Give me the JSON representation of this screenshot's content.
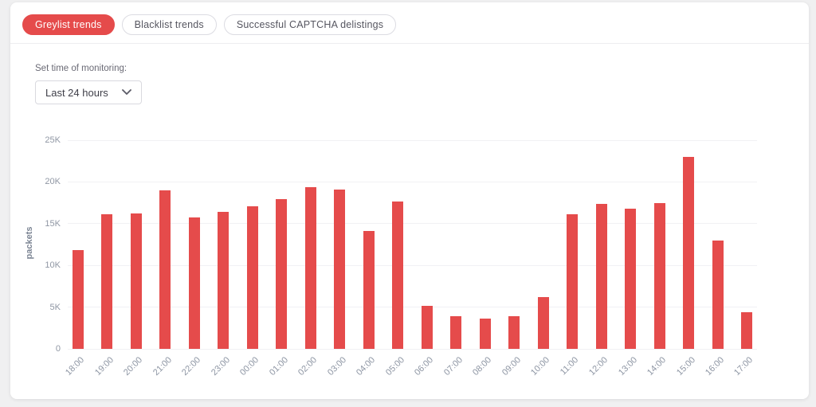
{
  "tabs": [
    {
      "label": "Greylist trends",
      "active": true
    },
    {
      "label": "Blacklist trends",
      "active": false
    },
    {
      "label": "Successful CAPTCHA delistings",
      "active": false
    }
  ],
  "controls": {
    "time_label": "Set time of monitoring:",
    "time_select_value": "Last 24 hours"
  },
  "colors": {
    "accent_red": "#e54b4b",
    "bar": "#e54b4b",
    "grid": "#f1f1f4",
    "axis_text": "#8d95a3",
    "page_bg": "#f0f0f1",
    "card_bg": "#ffffff"
  },
  "chart_data": {
    "type": "bar",
    "title": "",
    "xlabel": "",
    "ylabel": "packets",
    "categories": [
      "18:00",
      "19:00",
      "20:00",
      "21:00",
      "22:00",
      "23:00",
      "00:00",
      "01:00",
      "02:00",
      "03:00",
      "04:00",
      "05:00",
      "06:00",
      "07:00",
      "08:00",
      "09:00",
      "10:00",
      "11:00",
      "12:00",
      "13:00",
      "14:00",
      "15:00",
      "16:00",
      "17:00"
    ],
    "values": [
      11800,
      16100,
      16200,
      19000,
      15700,
      16400,
      17100,
      17900,
      19400,
      19100,
      14100,
      17700,
      5200,
      3900,
      3600,
      3900,
      6200,
      16100,
      17400,
      16800,
      17500,
      23000,
      13000,
      4400
    ],
    "ylim": [
      0,
      25000
    ],
    "yticks": [
      "0",
      "5K",
      "10K",
      "15K",
      "20K",
      "25K"
    ],
    "grid": true,
    "legend": false
  }
}
